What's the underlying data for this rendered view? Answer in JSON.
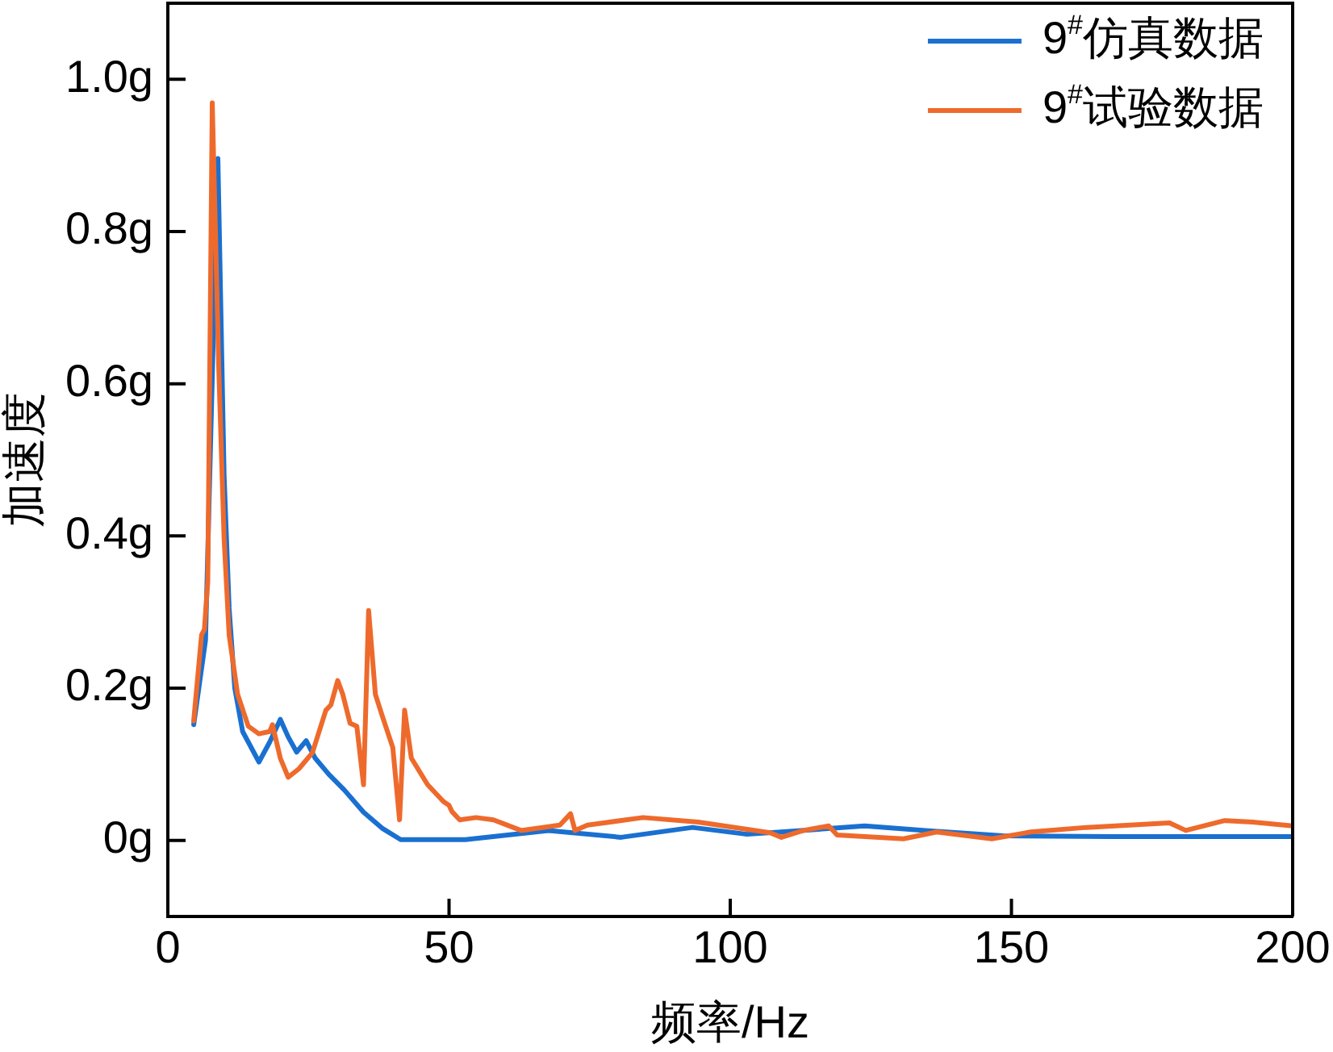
{
  "chart_data": {
    "type": "line",
    "xlabel": "频率/Hz",
    "ylabel": "加速度",
    "xlim": [
      0,
      200
    ],
    "ylim": [
      -0.1,
      1.1
    ],
    "xticks": [
      0,
      50,
      100,
      150,
      200
    ],
    "yticks": [
      {
        "value": 0,
        "label": "0g"
      },
      {
        "value": 0.2,
        "label": "0.2g"
      },
      {
        "value": 0.4,
        "label": "0.4g"
      },
      {
        "value": 0.6,
        "label": "0.6g"
      },
      {
        "value": 0.8,
        "label": "0.8g"
      },
      {
        "value": 1.0,
        "label": "1.0g"
      }
    ],
    "legend": "top right",
    "marker": "none",
    "line_style": "solid",
    "series": [
      {
        "name": "9$^{#}$仿真数据",
        "color": "#1a70d0",
        "x": [
          4.6,
          6.7,
          8.9,
          10.0,
          10.9,
          11.9,
          13.3,
          16.2,
          18.1,
          20.0,
          21.4,
          22.9,
          24.6,
          26.2,
          28.6,
          31.4,
          34.8,
          38.1,
          41.4,
          52.9,
          67.7,
          80.6,
          93.3,
          103,
          109,
          123.9,
          134.7,
          148.5,
          168,
          200
        ],
        "values": [
          0.152,
          0.263,
          0.896,
          0.48,
          0.305,
          0.2,
          0.143,
          0.103,
          0.129,
          0.159,
          0.136,
          0.116,
          0.131,
          0.108,
          0.087,
          0.066,
          0.037,
          0.016,
          0.001,
          0.001,
          0.013,
          0.004,
          0.017,
          0.008,
          0.011,
          0.019,
          0.013,
          0.006,
          0.005,
          0.005
        ]
      },
      {
        "name": "9$^{#}$试验数据",
        "color": "#ee6a2c",
        "x": [
          4.6,
          6.0,
          6.5,
          7.1,
          7.9,
          9.05,
          10.0,
          10.9,
          12.4,
          14.3,
          16.2,
          18.1,
          18.6,
          20.0,
          21.4,
          23.3,
          25.7,
          28.1,
          29.0,
          30.2,
          31.1,
          32.4,
          33.6,
          34.8,
          35.7,
          36.9,
          38.1,
          40.0,
          41.2,
          42.1,
          43.3,
          46.2,
          49.0,
          50.0,
          50.5,
          51.9,
          54.8,
          57.9,
          62.8,
          69.7,
          71.6,
          72.4,
          74.6,
          84.5,
          94.3,
          107.1,
          109.1,
          113,
          117.5,
          119,
          130.8,
          136.7,
          146.5,
          153.4,
          163.3,
          178.1,
          181,
          187.9,
          192.9,
          200
        ],
        "values": [
          0.157,
          0.27,
          0.277,
          0.34,
          0.969,
          0.622,
          0.397,
          0.27,
          0.192,
          0.15,
          0.14,
          0.143,
          0.152,
          0.108,
          0.083,
          0.094,
          0.115,
          0.171,
          0.178,
          0.21,
          0.192,
          0.154,
          0.15,
          0.073,
          0.302,
          0.192,
          0.164,
          0.122,
          0.027,
          0.171,
          0.108,
          0.073,
          0.051,
          0.046,
          0.038,
          0.027,
          0.03,
          0.027,
          0.013,
          0.02,
          0.035,
          0.013,
          0.02,
          0.03,
          0.024,
          0.01,
          0.004,
          0.013,
          0.019,
          0.007,
          0.002,
          0.011,
          0.002,
          0.011,
          0.017,
          0.023,
          0.013,
          0.026,
          0.024,
          0.019
        ]
      }
    ]
  }
}
